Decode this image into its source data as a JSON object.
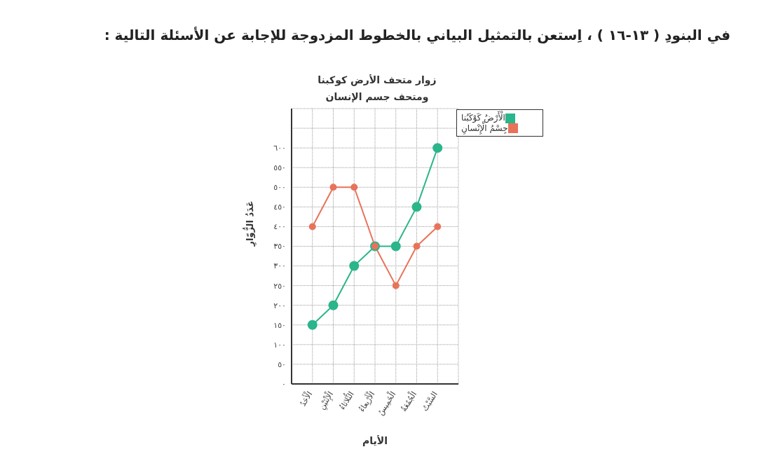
{
  "chart_data": {
    "type": "line",
    "title": "زوار متحف الأرض كوكبنا",
    "subtitle": "ومتحف جسم الإنسان",
    "xlabel": "الأيام",
    "ylabel": "عَدَدُ الزُّوّارِ",
    "annotations": [
      "في البنودِ ( ١٣-١٦ ) ، اِستعن بالتمثيل البياني بالخطوط المزدوجة للإجابة عن الأسئلة التالية :"
    ],
    "categories": [
      "الْأَحَدُ",
      "الْإِثْنَيْنِ",
      "الثُّلاثاءُ",
      "الْأَرْبِعاءُ",
      "الْخَمِيسُ",
      "الْجُمُعَةُ",
      "السَّبْتُ"
    ],
    "series": [
      {
        "name": "الْأَرْضُ كَوْكَبُنا",
        "color": "#2bb58a",
        "values": [
          150,
          200,
          300,
          350,
          350,
          450,
          600
        ]
      },
      {
        "name": "جِسْمُ الْإِنْسانِ",
        "color": "#e8735a",
        "values": [
          400,
          500,
          500,
          350,
          250,
          350,
          400
        ]
      }
    ],
    "ylim": [
      0,
      700
    ],
    "yticks": [
      {
        "value": 0,
        "label": "٠"
      },
      {
        "value": 50,
        "label": "٥٠"
      },
      {
        "value": 100,
        "label": "١٠٠"
      },
      {
        "value": 150,
        "label": "١٥٠"
      },
      {
        "value": 200,
        "label": "٢٠٠"
      },
      {
        "value": 250,
        "label": "٢٥٠"
      },
      {
        "value": 300,
        "label": "٣٠٠"
      },
      {
        "value": 350,
        "label": "٣٥٠"
      },
      {
        "value": 400,
        "label": "٤٠٠"
      },
      {
        "value": 450,
        "label": "٤٥٠"
      },
      {
        "value": 500,
        "label": "٥٠٠"
      },
      {
        "value": 550,
        "label": "٥٥٠"
      },
      {
        "value": 600,
        "label": "٦٠٠"
      },
      {
        "value": 650,
        "label": null
      }
    ],
    "grid": true,
    "legend": "top right",
    "marker": "circle",
    "line_style": "solid"
  }
}
